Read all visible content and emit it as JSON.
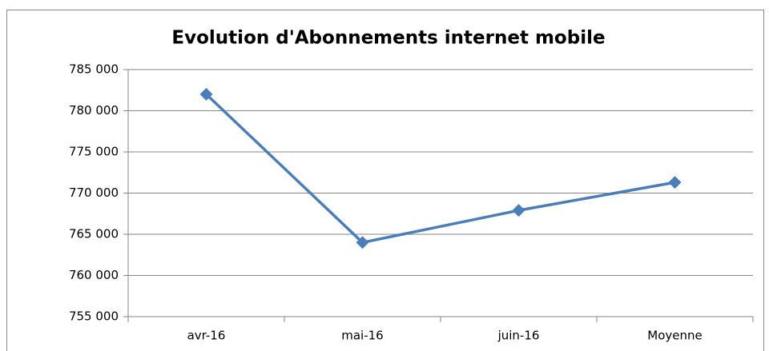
{
  "chart_data": {
    "type": "line",
    "title": "Evolution d'Abonnements internet mobile",
    "categories": [
      "avr-16",
      "mai-16",
      "juin-16",
      "Moyenne"
    ],
    "series": [
      {
        "name": "Abonnements internet mobile",
        "color": "#4a7ebb",
        "values": [
          782000,
          764000,
          767900,
          771300
        ]
      }
    ],
    "ylim": [
      755000,
      785000
    ],
    "yticks": [
      {
        "value": 755000,
        "label": "755 000"
      },
      {
        "value": 760000,
        "label": "760 000"
      },
      {
        "value": 765000,
        "label": "765 000"
      },
      {
        "value": 770000,
        "label": "770 000"
      },
      {
        "value": 775000,
        "label": "775 000"
      },
      {
        "value": 780000,
        "label": "780 000"
      },
      {
        "value": 785000,
        "label": "785 000"
      }
    ],
    "grid": true
  }
}
